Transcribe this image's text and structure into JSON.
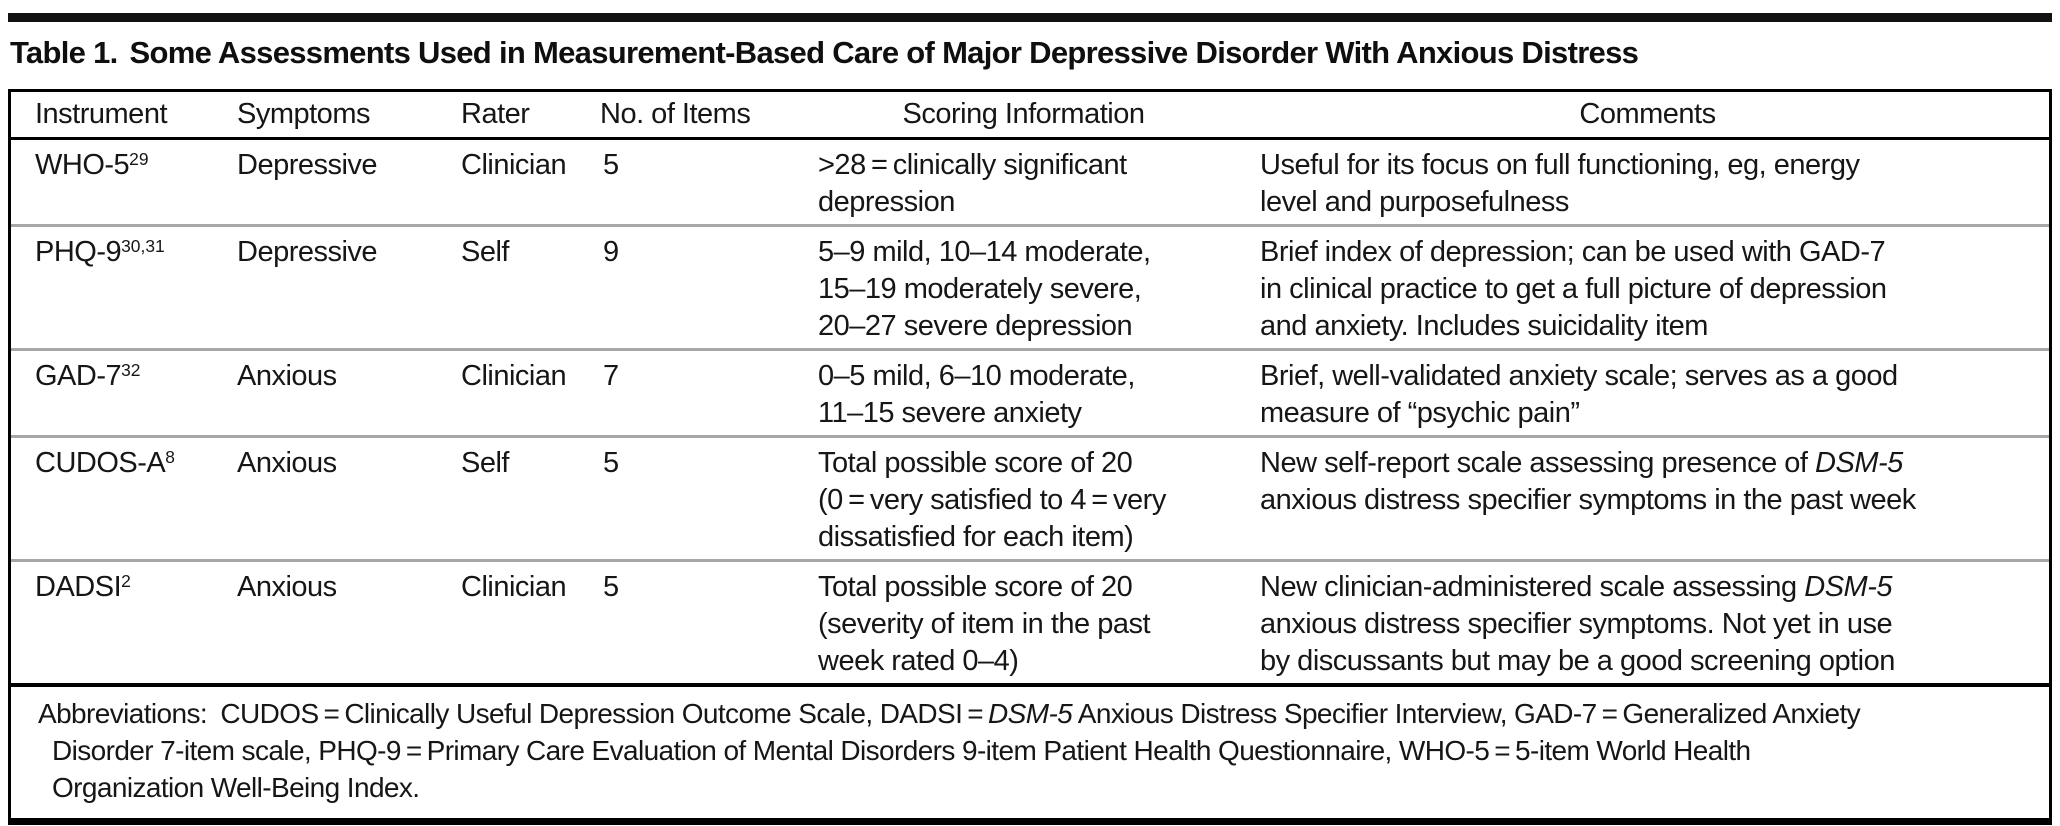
{
  "colors": {
    "rule_black": "#000000",
    "row_divider_gray": "#a6a7a9",
    "text": "#161616"
  },
  "title": {
    "label": "Table 1.",
    "text": "Some Assessments Used in Measurement-Based Care of Major Depressive Disorder With Anxious Distress"
  },
  "table": {
    "headers": [
      "Instrument",
      "Symptoms",
      "Rater",
      "No. of Items",
      "Scoring Information",
      "Comments"
    ],
    "rows": [
      {
        "instrument": [
          {
            "t": "WHO-5"
          },
          {
            "t": "29",
            "sup": true
          }
        ],
        "symptoms": "Depressive",
        "rater": "Clinician",
        "items": "5",
        "scoring": [
          ">28 = clinically significant",
          "depression"
        ],
        "comments": [
          [
            {
              "t": "Useful for its focus on full functioning, eg, energy"
            }
          ],
          [
            {
              "t": "level and purposefulness"
            }
          ]
        ]
      },
      {
        "instrument": [
          {
            "t": "PHQ-9"
          },
          {
            "t": "30,31",
            "sup": true
          }
        ],
        "symptoms": "Depressive",
        "rater": "Self",
        "items": "9",
        "scoring": [
          "5–9 mild, 10–14 moderate,",
          "15–19 moderately severe,",
          "20–27 severe depression"
        ],
        "comments": [
          [
            {
              "t": "Brief index of depression; can be used with GAD-7"
            }
          ],
          [
            {
              "t": "in clinical practice to get a full picture of depression"
            }
          ],
          [
            {
              "t": "and anxiety. Includes suicidality item"
            }
          ]
        ]
      },
      {
        "instrument": [
          {
            "t": "GAD-7"
          },
          {
            "t": "32",
            "sup": true
          }
        ],
        "symptoms": "Anxious",
        "rater": "Clinician",
        "items": "7",
        "scoring": [
          "0–5 mild, 6–10 moderate,",
          "11–15 severe anxiety"
        ],
        "comments": [
          [
            {
              "t": "Brief, well-validated anxiety scale; serves as a good"
            }
          ],
          [
            {
              "t": "measure of “psychic pain”"
            }
          ]
        ]
      },
      {
        "instrument": [
          {
            "t": "CUDOS-A"
          },
          {
            "t": "8",
            "sup": true
          }
        ],
        "symptoms": "Anxious",
        "rater": "Self",
        "items": "5",
        "scoring": [
          "Total possible score of 20",
          "(0 = very satisfied to 4 = very",
          "dissatisfied for each item)"
        ],
        "comments": [
          [
            {
              "t": "New self-report scale assessing presence of "
            },
            {
              "t": "DSM-5",
              "i": true
            }
          ],
          [
            {
              "t": "anxious distress specifier symptoms in the past week"
            }
          ]
        ]
      },
      {
        "instrument": [
          {
            "t": "DADSI"
          },
          {
            "t": "2",
            "sup": true
          }
        ],
        "symptoms": "Anxious",
        "rater": "Clinician",
        "items": "5",
        "scoring": [
          "Total possible score of 20",
          "(severity of item in the past",
          "week rated 0–4)"
        ],
        "comments": [
          [
            {
              "t": "New clinician-administered scale assessing "
            },
            {
              "t": "DSM-5",
              "i": true
            }
          ],
          [
            {
              "t": "anxious distress specifier symptoms. Not yet in use"
            }
          ],
          [
            {
              "t": "by discussants but may be a good screening option"
            }
          ]
        ]
      }
    ],
    "footnote_lines": [
      [
        {
          "t": "Abbreviations: CUDOS = Clinically Useful Depression Outcome Scale, DADSI = "
        },
        {
          "t": "DSM-5",
          "i": true
        },
        {
          "t": " Anxious Distress Specifier Interview, GAD-7 = Generalized Anxiety"
        }
      ],
      [
        {
          "t": "Disorder 7-item scale, PHQ-9 = Primary Care Evaluation of Mental Disorders 9-item Patient Health Questionnaire, WHO-5 = 5-item World Health"
        }
      ],
      [
        {
          "t": "Organization Well-Being Index."
        }
      ]
    ]
  }
}
